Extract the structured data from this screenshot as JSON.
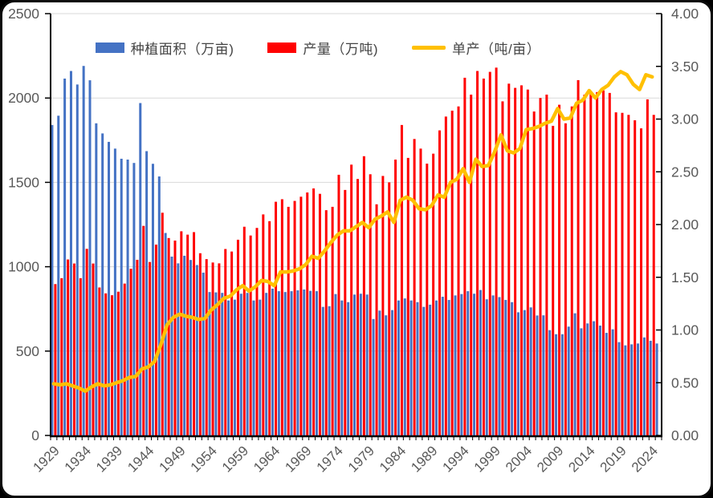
{
  "window": {
    "background": "#ffffff",
    "border_color": "#0b0b0b"
  },
  "legend": {
    "items": [
      {
        "label": "种植面积（万亩)",
        "type": "bar",
        "color": "#4472C4"
      },
      {
        "label": "产量（万吨)",
        "type": "bar",
        "color": "#FF0000"
      },
      {
        "label": "单产（吨/亩）",
        "type": "line",
        "color": "#FFC000"
      }
    ]
  },
  "chart_data": {
    "type": "bar",
    "title": "",
    "xlabel": "",
    "ylabel_left": "",
    "ylabel_right": "",
    "grid": true,
    "legend_position": "top",
    "x_axis": {
      "start_year": 1929,
      "end_year": 2025,
      "tick_years": [
        1929,
        1934,
        1939,
        1944,
        1949,
        1954,
        1959,
        1964,
        1969,
        1974,
        1979,
        1984,
        1989,
        1994,
        1999,
        2004,
        2009,
        2014,
        2019,
        2024
      ]
    },
    "left_axis": {
      "min": 0,
      "max": 2500,
      "step": 500,
      "tick_labels": [
        "0",
        "500",
        "1000",
        "1500",
        "2000",
        "2500"
      ]
    },
    "right_axis": {
      "min": 0,
      "max": 4,
      "step": 0.5,
      "tick_labels": [
        "0.00",
        "0.50",
        "1.00",
        "1.50",
        "2.00",
        "2.50",
        "3.00",
        "3.50",
        "4.00"
      ]
    },
    "colors": {
      "area": "#4472C4",
      "production": "#FF0000",
      "yield": "#FFC000",
      "gridline": "#D9D9D9",
      "axis": "#000000",
      "tick_text": "#595959"
    },
    "series": [
      {
        "name": "种植面积（万亩)",
        "type": "bar",
        "axis": "left",
        "color": "#4472C4",
        "values": [
          1840,
          1895,
          2115,
          2160,
          2080,
          2190,
          2105,
          1850,
          1790,
          1740,
          1700,
          1640,
          1635,
          1615,
          1970,
          1685,
          1610,
          1535,
          1200,
          1060,
          1020,
          1065,
          1040,
          1010,
          965,
          850,
          848,
          845,
          800,
          805,
          840,
          845,
          800,
          805,
          845,
          870,
          855,
          850,
          855,
          860,
          865,
          857,
          855,
          762,
          766,
          838,
          800,
          790,
          835,
          840,
          835,
          690,
          740,
          712,
          743,
          800,
          812,
          800,
          790,
          762,
          775,
          800,
          822,
          803,
          830,
          838,
          855,
          840,
          862,
          807,
          830,
          820,
          803,
          790,
          730,
          743,
          759,
          711,
          712,
          624,
          600,
          600,
          645,
          724,
          635,
          664,
          677,
          651,
          608,
          629,
          553,
          534,
          540,
          545,
          581,
          561,
          545
        ]
      },
      {
        "name": "产量（万吨)",
        "type": "bar",
        "axis": "left",
        "color": "#FF0000",
        "values": [
          897,
          932,
          1043,
          1019,
          932,
          1106,
          1019,
          877,
          842,
          831,
          852,
          900,
          988,
          1041,
          1242,
          1028,
          1131,
          1320,
          1170,
          1155,
          1210,
          1190,
          1205,
          1080,
          1045,
          1025,
          1020,
          1105,
          1090,
          1160,
          1237,
          1185,
          1230,
          1310,
          1270,
          1385,
          1400,
          1355,
          1390,
          1415,
          1440,
          1464,
          1432,
          1335,
          1355,
          1545,
          1455,
          1605,
          1520,
          1655,
          1548,
          1370,
          1538,
          1500,
          1635,
          1840,
          1645,
          1757,
          1700,
          1611,
          1670,
          1808,
          1890,
          1925,
          1950,
          2120,
          2020,
          2160,
          2115,
          2155,
          2180,
          1980,
          2085,
          2060,
          2075,
          2050,
          1920,
          2000,
          2020,
          1835,
          1960,
          1850,
          1950,
          2106,
          2020,
          2030,
          2035,
          2045,
          2030,
          1915,
          1912,
          1900,
          1868,
          1820,
          1992,
          1900,
          null
        ]
      },
      {
        "name": "单产（吨/亩）",
        "type": "line",
        "axis": "right",
        "color": "#FFC000",
        "values": [
          0.49,
          0.48,
          0.49,
          0.47,
          0.45,
          0.42,
          0.46,
          0.49,
          0.47,
          0.48,
          0.5,
          0.52,
          0.55,
          0.56,
          0.63,
          0.65,
          0.7,
          0.86,
          1.05,
          1.12,
          1.15,
          1.13,
          1.12,
          1.1,
          1.11,
          1.19,
          1.24,
          1.3,
          1.32,
          1.38,
          1.42,
          1.37,
          1.41,
          1.47,
          1.46,
          1.42,
          1.55,
          1.55,
          1.56,
          1.58,
          1.62,
          1.7,
          1.68,
          1.75,
          1.83,
          1.9,
          1.94,
          1.94,
          1.98,
          2.02,
          1.97,
          2.05,
          2.08,
          2.12,
          2.02,
          2.23,
          2.26,
          2.23,
          2.15,
          2.14,
          2.18,
          2.28,
          2.26,
          2.4,
          2.43,
          2.53,
          2.4,
          2.62,
          2.55,
          2.56,
          2.69,
          2.85,
          2.7,
          2.68,
          2.72,
          2.9,
          2.91,
          2.93,
          2.96,
          2.98,
          3.1,
          3.0,
          3.01,
          3.15,
          3.18,
          3.27,
          3.2,
          3.28,
          3.32,
          3.4,
          3.45,
          3.42,
          3.33,
          3.28,
          3.42,
          3.4,
          null
        ]
      }
    ]
  }
}
